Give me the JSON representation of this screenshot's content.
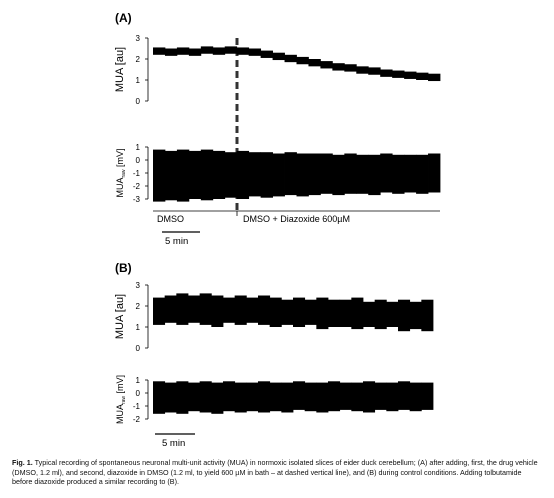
{
  "figure": {
    "panels": [
      {
        "label": "(A)",
        "charts": [
          {
            "type": "band",
            "ylabel": "MUA  [au]",
            "ylim": [
              0,
              3
            ],
            "yticks": [
              0,
              1,
              2,
              3
            ],
            "color": "#000000",
            "upper": [
              2.55,
              2.5,
              2.55,
              2.5,
              2.6,
              2.55,
              2.6,
              2.55,
              2.5,
              2.4,
              2.3,
              2.2,
              2.1,
              2.0,
              1.9,
              1.8,
              1.75,
              1.65,
              1.6,
              1.5,
              1.45,
              1.4,
              1.35,
              1.3
            ],
            "lower": [
              2.2,
              2.15,
              2.2,
              2.15,
              2.25,
              2.2,
              2.25,
              2.2,
              2.15,
              2.05,
              1.95,
              1.85,
              1.75,
              1.65,
              1.55,
              1.45,
              1.4,
              1.3,
              1.25,
              1.15,
              1.1,
              1.05,
              1.0,
              0.95
            ]
          },
          {
            "type": "band",
            "ylabel": "MUA",
            "ylabel_sub": "raw",
            "ylabel_unit": " [mV]",
            "ylim": [
              -3,
              1
            ],
            "yticks": [
              -3,
              -2,
              -1,
              0,
              1
            ],
            "color": "#000000",
            "upper": [
              0.8,
              0.7,
              0.8,
              0.7,
              0.8,
              0.7,
              0.6,
              0.7,
              0.6,
              0.6,
              0.5,
              0.6,
              0.5,
              0.5,
              0.5,
              0.4,
              0.5,
              0.4,
              0.4,
              0.5,
              0.4,
              0.4,
              0.4,
              0.5
            ],
            "lower": [
              -3.2,
              -3.1,
              -3.2,
              -3.0,
              -3.1,
              -3.0,
              -2.9,
              -3.0,
              -2.8,
              -2.9,
              -2.8,
              -2.7,
              -2.8,
              -2.7,
              -2.6,
              -2.7,
              -2.6,
              -2.6,
              -2.7,
              -2.5,
              -2.6,
              -2.5,
              -2.6,
              -2.5
            ]
          }
        ],
        "condition_before": "DMSO",
        "condition_after": "DMSO + Diazoxide 600µM",
        "scale": "5 min"
      },
      {
        "label": "(B)",
        "charts": [
          {
            "type": "band",
            "ylabel": "MUA [au]",
            "ylim": [
              0,
              3
            ],
            "yticks": [
              0,
              1,
              2,
              3
            ],
            "color": "#000000",
            "upper": [
              2.4,
              2.5,
              2.6,
              2.5,
              2.6,
              2.5,
              2.4,
              2.5,
              2.4,
              2.5,
              2.4,
              2.3,
              2.4,
              2.3,
              2.4,
              2.3,
              2.3,
              2.4,
              2.2,
              2.3,
              2.2,
              2.3,
              2.2,
              2.3
            ],
            "lower": [
              1.1,
              1.2,
              1.1,
              1.2,
              1.1,
              1.0,
              1.2,
              1.1,
              1.2,
              1.1,
              1.0,
              1.1,
              1.0,
              1.1,
              0.9,
              1.0,
              1.0,
              0.9,
              1.0,
              0.9,
              1.0,
              0.8,
              0.9,
              0.8
            ]
          },
          {
            "type": "band",
            "ylabel": "MUA",
            "ylabel_sub": "raw",
            "ylabel_unit": " [mV]",
            "ylim": [
              -2,
              1
            ],
            "yticks": [
              -2,
              -1,
              0,
              1
            ],
            "color": "#000000",
            "upper": [
              0.9,
              0.8,
              0.9,
              0.8,
              0.9,
              0.8,
              0.9,
              0.8,
              0.8,
              0.9,
              0.8,
              0.8,
              0.9,
              0.8,
              0.8,
              0.9,
              0.8,
              0.8,
              0.9,
              0.8,
              0.8,
              0.9,
              0.8,
              0.8
            ],
            "lower": [
              -1.6,
              -1.5,
              -1.6,
              -1.4,
              -1.5,
              -1.6,
              -1.4,
              -1.5,
              -1.4,
              -1.5,
              -1.4,
              -1.5,
              -1.3,
              -1.4,
              -1.5,
              -1.4,
              -1.3,
              -1.4,
              -1.5,
              -1.3,
              -1.4,
              -1.3,
              -1.4,
              -1.3
            ]
          }
        ],
        "scale": "5 min"
      }
    ],
    "caption": {
      "label": "Fig. 1.",
      "text": " Typical recording of spontaneous neuronal multi-unit activity (MUA) in normoxic isolated slices of eider duck cerebellum; (A) after adding, first, the drug vehicle (DMSO, 1.2 ml), and second, diazoxide in DMSO (1.2 ml, to yield 600 µM in bath – at dashed vertical line), and (B) during control conditions. Adding tolbutamide before diazoxide produced a similar recording to (B)."
    }
  }
}
